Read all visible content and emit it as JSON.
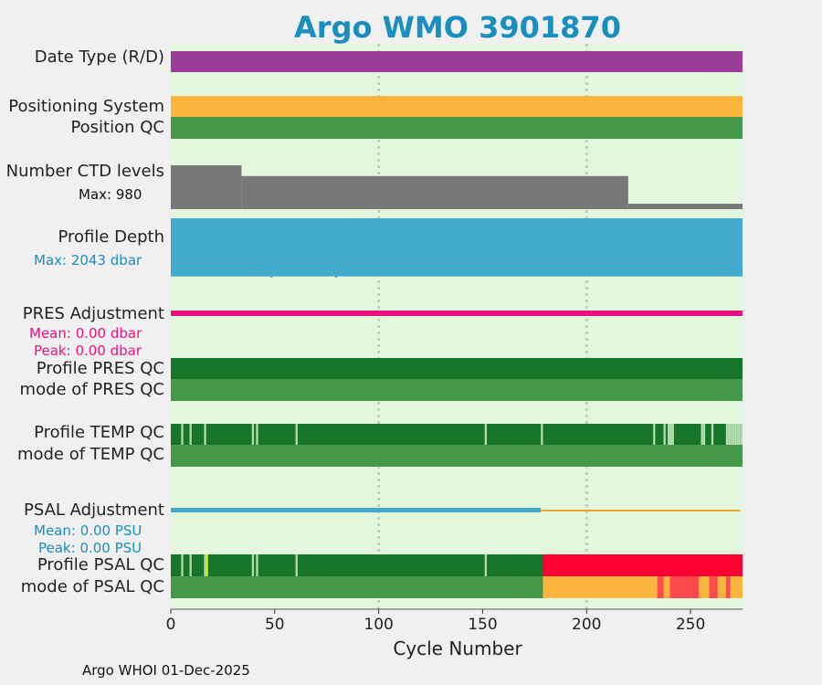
{
  "title": "Argo WMO 3901870",
  "footer": "Argo WHOI 01-Dec-2025",
  "colors": {
    "background": "#e3f7dd",
    "date_type": "#993d99",
    "positioning": "#fbb53f",
    "qc_good": "#45984a",
    "qc_dark": "#18762a",
    "qc_light": "#b5dbb0",
    "ctd": "#777777",
    "depth": "#42aacd",
    "pres_adj": "#e8127f",
    "psal_adj": "#43a8cc",
    "psal_adj_tail": "#e8a530",
    "bad": "#ff0033",
    "questionable": "#fbb53f",
    "probably_bad": "#ff4a50",
    "yellow": "#ecf21a"
  },
  "rows": {
    "date_type": "Date Type (R/D)",
    "positioning_system": "Positioning System",
    "position_qc": "Position QC",
    "number_ctd_levels": "Number CTD levels",
    "ctd_max": "Max: 980",
    "profile_depth": "Profile Depth",
    "depth_max": "Max: 2043 dbar",
    "pres_adjustment": "PRES Adjustment",
    "pres_mean": "Mean: 0.00 dbar",
    "pres_peak": "Peak: 0.00 dbar",
    "profile_pres_qc": "Profile PRES QC",
    "mode_pres_qc": "mode of PRES QC",
    "profile_temp_qc": "Profile TEMP QC",
    "mode_temp_qc": "mode of TEMP QC",
    "psal_adjustment": "PSAL Adjustment",
    "psal_mean": "Mean: 0.00 PSU",
    "psal_peak": "Peak: 0.00 PSU",
    "profile_psal_qc": "Profile PSAL QC",
    "mode_psal_qc": "mode of PSAL QC"
  },
  "chart_data": {
    "type": "timeline",
    "xlabel": "Cycle Number",
    "xlim": [
      0,
      275
    ],
    "xticks": [
      0,
      50,
      100,
      150,
      200,
      250
    ],
    "grid": "dotted vertical at 100 and 200",
    "number_ctd_levels": {
      "max": 980,
      "steps": [
        [
          0,
          34,
          980
        ],
        [
          34,
          220,
          740
        ],
        [
          220,
          275,
          120
        ]
      ]
    },
    "profile_depth_dbar": {
      "max": 2043,
      "typical": 2000
    },
    "pres_adjustment_dbar": {
      "mean": 0.0,
      "peak": 0.0,
      "range": [
        0,
        275
      ]
    },
    "psal_adjustment_psu": {
      "mean": 0.0,
      "peak": 0.0,
      "adjusted_range": [
        0,
        178
      ],
      "tail_range": [
        178,
        274
      ]
    },
    "profile_temp_qc_light_cycles": [
      5,
      9,
      16,
      39,
      41,
      60,
      151,
      178,
      232,
      237,
      239,
      240,
      241,
      255,
      256,
      260,
      267,
      268,
      269,
      270,
      271,
      272,
      273,
      274
    ],
    "profile_psal_qc_light_cycles": [
      5,
      9,
      16,
      39,
      41,
      60,
      151
    ],
    "profile_psal_qc_yellow_cycles": [
      17
    ],
    "profile_psal_qc_bad_range": [
      179,
      275
    ],
    "mode_psal_qc_questionable_range": [
      179,
      275
    ],
    "mode_psal_qc_probably_bad_ranges": [
      [
        234,
        237
      ],
      [
        240,
        254
      ],
      [
        259,
        263
      ],
      [
        267,
        269
      ]
    ]
  }
}
